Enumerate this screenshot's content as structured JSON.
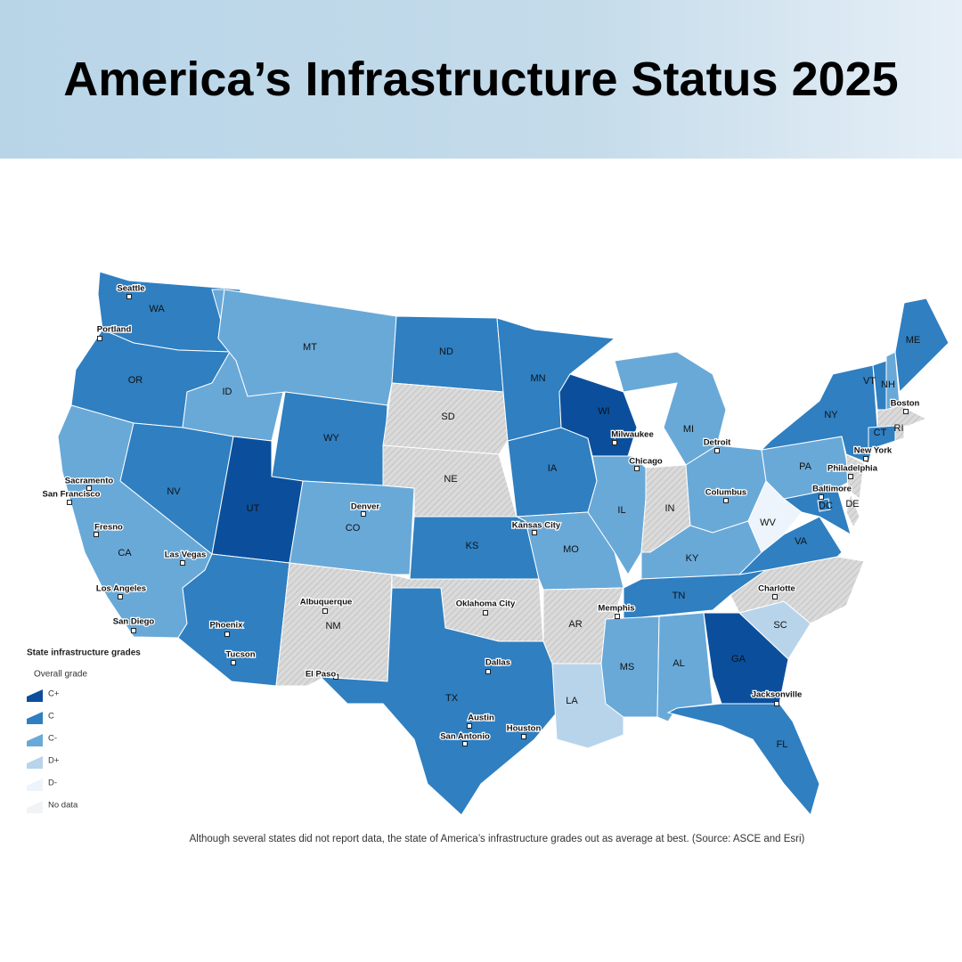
{
  "header": {
    "title": "America’s Infrastructure Status 2025"
  },
  "legend": {
    "title": "State infrastructure grades",
    "subtitle": "Overall grade",
    "items": [
      {
        "label": "C+",
        "color": "#0b4f9c"
      },
      {
        "label": "C",
        "color": "#2f7fc1"
      },
      {
        "label": "C-",
        "color": "#69a9d8"
      },
      {
        "label": "D+",
        "color": "#b8d4eb"
      },
      {
        "label": "D-",
        "color": "#eef4fb"
      },
      {
        "label": "No data",
        "color": "#d9d9d9",
        "pattern": "hatch"
      }
    ]
  },
  "states": [
    {
      "abbr": "WA",
      "grade": "C"
    },
    {
      "abbr": "OR",
      "grade": "C"
    },
    {
      "abbr": "CA",
      "grade": "C-"
    },
    {
      "abbr": "NV",
      "grade": "C"
    },
    {
      "abbr": "ID",
      "grade": "C-"
    },
    {
      "abbr": "MT",
      "grade": "C-"
    },
    {
      "abbr": "WY",
      "grade": "C"
    },
    {
      "abbr": "UT",
      "grade": "C+"
    },
    {
      "abbr": "CO",
      "grade": "C-"
    },
    {
      "abbr": null,
      "grade": "C"
    },
    {
      "abbr": "NM",
      "grade": "No data"
    },
    {
      "abbr": "ND",
      "grade": "C"
    },
    {
      "abbr": "SD",
      "grade": "No data"
    },
    {
      "abbr": "NE",
      "grade": "No data"
    },
    {
      "abbr": "KS",
      "grade": "C"
    },
    {
      "abbr": null,
      "grade": "No data"
    },
    {
      "abbr": "TX",
      "grade": "C"
    },
    {
      "abbr": "MN",
      "grade": "C"
    },
    {
      "abbr": "IA",
      "grade": "C"
    },
    {
      "abbr": "MO",
      "grade": "C-"
    },
    {
      "abbr": "AR",
      "grade": "No data"
    },
    {
      "abbr": "LA",
      "grade": "D+"
    },
    {
      "abbr": "WI",
      "grade": "C+"
    },
    {
      "abbr": "IL",
      "grade": "C-"
    },
    {
      "abbr": "MI",
      "grade": "C-"
    },
    {
      "abbr": "IN",
      "grade": "No data"
    },
    {
      "abbr": null,
      "grade": "C-"
    },
    {
      "abbr": "KY",
      "grade": "C-"
    },
    {
      "abbr": "TN",
      "grade": "C"
    },
    {
      "abbr": "MS",
      "grade": "C-"
    },
    {
      "abbr": "AL",
      "grade": "C-"
    },
    {
      "abbr": "GA",
      "grade": "C+"
    },
    {
      "abbr": "FL",
      "grade": "C"
    },
    {
      "abbr": "SC",
      "grade": "D+"
    },
    {
      "abbr": null,
      "grade": "No data"
    },
    {
      "abbr": "VA",
      "grade": "C"
    },
    {
      "abbr": "WV",
      "grade": "D-"
    },
    {
      "abbr": null,
      "grade": "C"
    },
    {
      "abbr": "DE",
      "grade": "No data"
    },
    {
      "abbr": "PA",
      "grade": "C-"
    },
    {
      "abbr": null,
      "grade": "No data"
    },
    {
      "abbr": "NY",
      "grade": "C"
    },
    {
      "abbr": "VT",
      "grade": "C"
    },
    {
      "abbr": "NH",
      "grade": "C-"
    },
    {
      "abbr": "ME",
      "grade": "C"
    },
    {
      "abbr": null,
      "grade": "No data"
    },
    {
      "abbr": "CT",
      "grade": "C"
    },
    {
      "abbr": "RI",
      "grade": "No data"
    },
    {
      "abbr": "DC",
      "grade": "C"
    }
  ],
  "cities": [
    "Seattle",
    "Portland",
    "Sacramento",
    "San Francisco",
    "Fresno",
    "Las Vegas",
    "Los Angeles",
    "San Diego",
    "Phoenix",
    "Tucson",
    "Denver",
    "Albuquerque",
    "El Paso",
    "Oklahoma City",
    "Dallas",
    "Austin",
    "San Antonio",
    "Houston",
    "Kansas City",
    "Memphis",
    "Milwaukee",
    "Chicago",
    "Detroit",
    "Columbus",
    "Baltimore",
    "Philadelphia",
    "New York",
    "Boston",
    "Charlotte",
    "Jacksonville"
  ],
  "caption": "Although several states did not report data, the state of America’s infrastructure grades out as average at best. (Source: ASCE and Esri)"
}
